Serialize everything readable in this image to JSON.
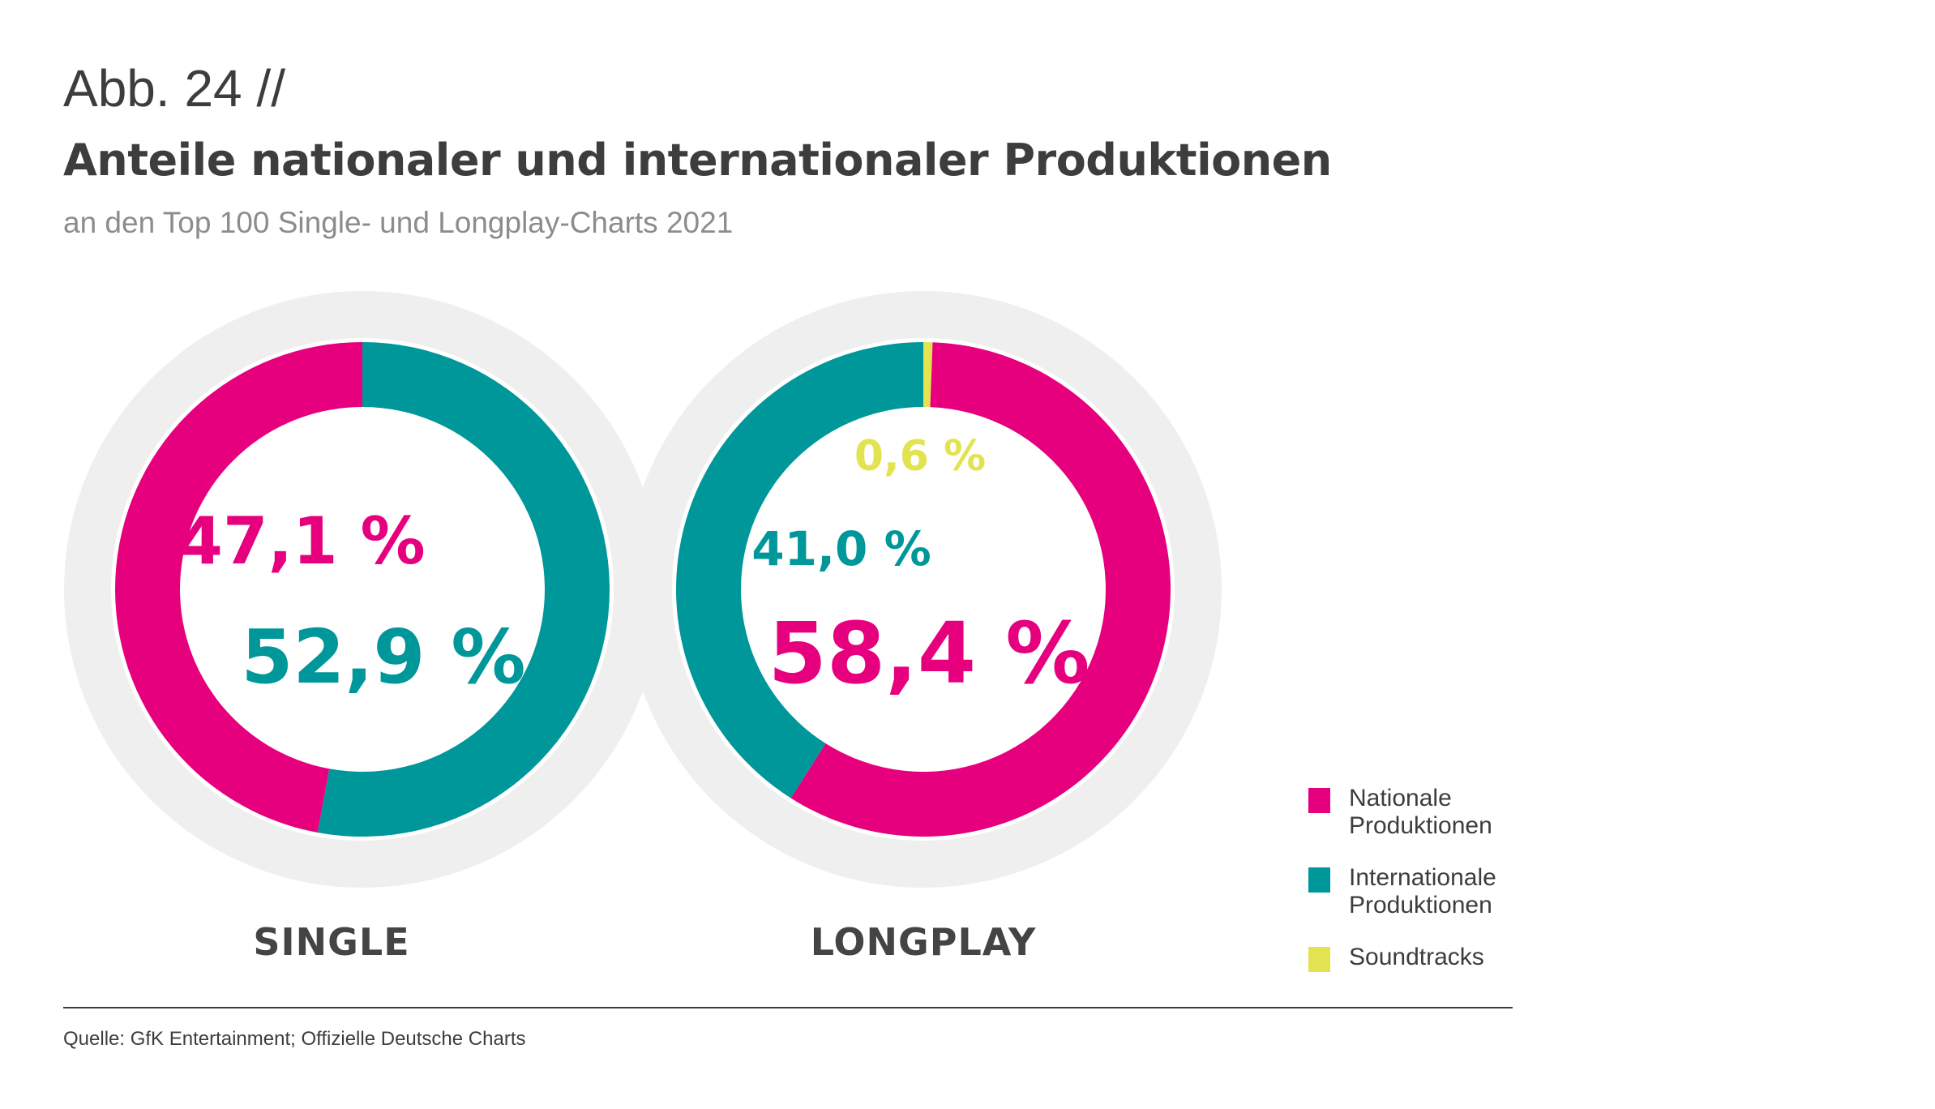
{
  "figure_label": "Abb. 24 //",
  "title": "Anteile nationaler und internationaler Produktionen",
  "subtitle": "an den Top 100 Single- und Longplay-Charts 2021",
  "source": "Quelle: GfK Entertainment; Offizielle Deutsche Charts",
  "colors": {
    "national": "#e6007e",
    "international": "#00979a",
    "soundtracks": "#e3e352",
    "ring_background": "#efefef"
  },
  "chart_data": [
    {
      "type": "pie",
      "title": "SINGLE",
      "unit": "%",
      "slices": [
        {
          "key": "national",
          "value": 47.1,
          "label": "47,1 %"
        },
        {
          "key": "international",
          "value": 52.9,
          "label": "52,9 %"
        }
      ]
    },
    {
      "type": "pie",
      "title": "LONGPLAY",
      "unit": "%",
      "slices": [
        {
          "key": "national",
          "value": 58.4,
          "label": "58,4 %"
        },
        {
          "key": "international",
          "value": 41.0,
          "label": "41,0 %"
        },
        {
          "key": "soundtracks",
          "value": 0.6,
          "label": "0,6 %"
        }
      ]
    }
  ],
  "legend": [
    {
      "key": "national",
      "label": "Nationale Produktionen"
    },
    {
      "key": "international",
      "label": "Internationale Produktionen"
    },
    {
      "key": "soundtracks",
      "label": "Soundtracks"
    }
  ]
}
